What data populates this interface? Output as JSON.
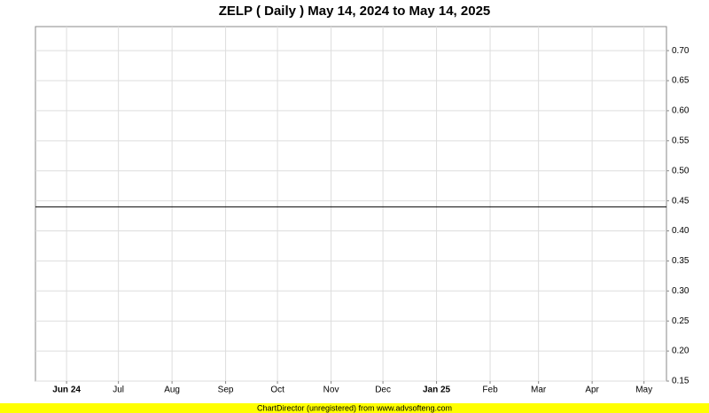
{
  "chart_data": {
    "type": "line",
    "title": "ZELP ( Daily ) May 14, 2024 to May 14, 2025",
    "series": [
      {
        "name": "ZELP",
        "color": "#000000",
        "x": [
          "2024-05-14",
          "2025-05-14"
        ],
        "values": [
          0.44,
          0.44
        ]
      }
    ],
    "xlim": [
      "2024-05-14",
      "2025-05-14"
    ],
    "xticks": [
      {
        "value": "2024-06",
        "label": "Jun 24"
      },
      {
        "value": "2024-07",
        "label": "Jul"
      },
      {
        "value": "2024-08",
        "label": "Aug"
      },
      {
        "value": "2024-09",
        "label": "Sep"
      },
      {
        "value": "2024-10",
        "label": "Oct"
      },
      {
        "value": "2024-11",
        "label": "Nov"
      },
      {
        "value": "2024-12",
        "label": "Dec"
      },
      {
        "value": "2025-01",
        "label": "Jan 25"
      },
      {
        "value": "2025-02",
        "label": "Feb"
      },
      {
        "value": "2025-03",
        "label": "Mar"
      },
      {
        "value": "2025-04",
        "label": "Apr"
      },
      {
        "value": "2025-05",
        "label": "May"
      }
    ],
    "ylim": [
      0.15,
      0.74
    ],
    "yticks": [
      0.15,
      {
        "value": 0.2,
        "label": "0.20"
      },
      0.25,
      {
        "value": 0.3,
        "label": "0.30"
      },
      0.35,
      {
        "value": 0.4,
        "label": "0.40"
      },
      0.45,
      {
        "value": 0.5,
        "label": "0.50"
      },
      0.55,
      {
        "value": 0.6,
        "label": "0.60"
      },
      0.65,
      {
        "value": 0.7,
        "label": "0.70"
      }
    ],
    "grid": true,
    "footer": "ChartDirector (unregistered) from www.advsofteng.com"
  }
}
